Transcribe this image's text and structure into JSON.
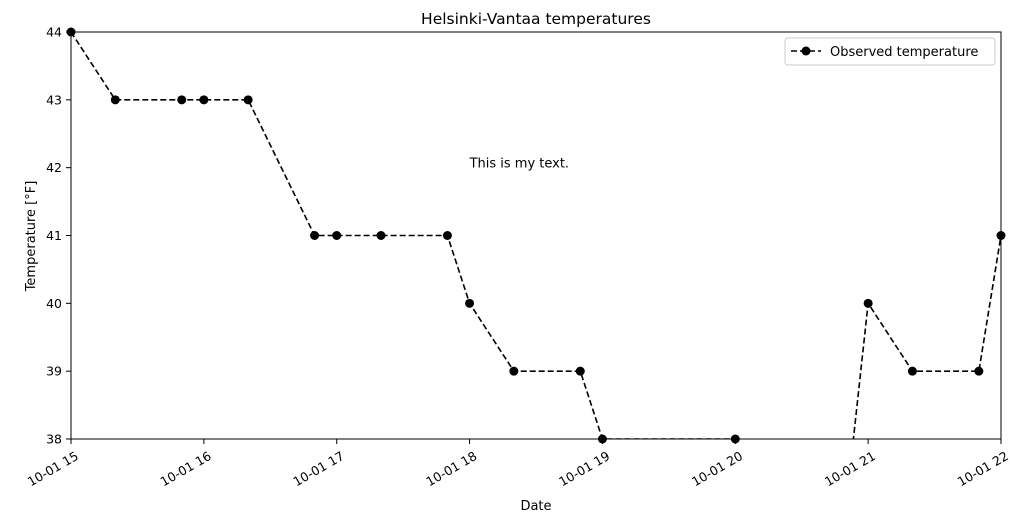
{
  "chart_data": {
    "type": "line",
    "title": "Helsinki-Vantaa temperatures",
    "xlabel": "Date",
    "ylabel": "Temperature [°F]",
    "annotation": {
      "text": "This is my text.",
      "x": "10-01 18",
      "y": 42
    },
    "xlim": [
      "10-01 15",
      "10-01 22"
    ],
    "ylim": [
      38,
      44
    ],
    "x_ticks": [
      "10-01 15",
      "10-01 16",
      "10-01 17",
      "10-01 18",
      "10-01 19",
      "10-01 20",
      "10-01 21",
      "10-01 22"
    ],
    "y_ticks": [
      38,
      39,
      40,
      41,
      42,
      43,
      44
    ],
    "legend": {
      "placement": "top-right"
    },
    "series": [
      {
        "name": "Observed temperature",
        "color": "#000000",
        "line_style": "dashed",
        "marker": "circle",
        "x": [
          "10-01 15:00",
          "10-01 15:20",
          "10-01 15:50",
          "10-01 16:00",
          "10-01 16:20",
          "10-01 16:50",
          "10-01 17:00",
          "10-01 17:20",
          "10-01 17:50",
          "10-01 18:00",
          "10-01 18:20",
          "10-01 18:50",
          "10-01 19:00",
          "10-01 20:00",
          "10-01 20:50",
          "10-01 21:00",
          "10-01 21:20",
          "10-01 21:50",
          "10-01 22:00"
        ],
        "y": [
          44,
          43,
          43,
          43,
          43,
          41,
          41,
          41,
          41,
          40,
          39,
          39,
          38,
          38,
          37,
          40,
          39,
          39,
          41
        ]
      }
    ]
  }
}
